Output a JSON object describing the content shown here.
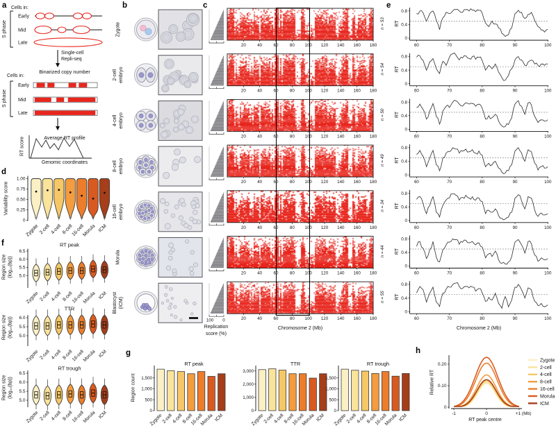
{
  "stages": [
    "Zygote",
    "2-cell",
    "4-cell",
    "8-cell",
    "16-cell",
    "Morula",
    "ICM"
  ],
  "stage_colors": [
    "#FBF0C4",
    "#FAE39B",
    "#F6C766",
    "#F49C3E",
    "#EC7D2B",
    "#D95A20",
    "#A63E1A"
  ],
  "accent_red": "#E8261D",
  "panels": {
    "a": {
      "letter": "a",
      "cells_in": "Cells in:",
      "s_phase": "S phase",
      "phases": [
        "Early",
        "Mid",
        "Late"
      ],
      "arrow_caption": [
        "Single-cell",
        "Repli-seq"
      ],
      "binarized_title": "Binarized copy number",
      "avg_title": "Average RT profile",
      "ylabel": "RT score",
      "xlabel": "Genomic coordinates",
      "early_segments": [
        [
          0.05,
          0.18
        ],
        [
          0.22,
          0.33
        ],
        [
          0.55,
          0.67
        ],
        [
          0.71,
          0.84
        ]
      ],
      "mid_segments": [
        [
          0.02,
          0.28
        ],
        [
          0.36,
          0.48
        ],
        [
          0.54,
          0.97
        ]
      ],
      "late_segments": [
        [
          0.02,
          0.97
        ]
      ]
    },
    "b": {
      "letter": "b",
      "stage_labels": [
        "Zygote",
        "2-cell|embryo",
        "4-cell|embryo",
        "8-cell|embryo",
        "16-cell|embryo",
        "Morula",
        "Blastocyst|(ICM)"
      ]
    },
    "c": {
      "letter": "c",
      "xlabel": "Chromosome 2 (Mb)",
      "hist_label": [
        "Replication",
        "score (%)"
      ],
      "hist_ticks": [
        "100",
        "0"
      ]
    },
    "d": {
      "letter": "d",
      "ylabel": "Variability score"
    },
    "e": {
      "letter": "e",
      "ylabel": "RT",
      "xlabel": "Chromosome 2 (Mb)"
    },
    "f": {
      "letter": "f",
      "ylabel": [
        "Region size",
        "(log₁₀(bp))"
      ]
    },
    "g": {
      "letter": "g",
      "ylabel": "Region count"
    },
    "h": {
      "letter": "h",
      "ylabel": "Relative RT",
      "xlabel": "RT peak centre"
    }
  },
  "chart_data": [
    {
      "panel": "c",
      "type": "heatmap",
      "x_ticks": [
        20,
        40,
        60,
        80,
        100,
        120,
        140,
        160,
        180
      ],
      "xlabel": "Chromosome 2 (Mb)",
      "n_per_row": [
        53,
        54,
        50,
        49,
        34,
        44,
        55
      ],
      "highlight_mb": [
        60,
        100
      ],
      "color": "#E8261D",
      "hist_axis": {
        "label": "Replication score (%)",
        "ticks": [
          100,
          0
        ]
      }
    },
    {
      "panel": "d",
      "type": "violin",
      "title": "",
      "ylabel": "Variability score",
      "categories": [
        "Zygote",
        "2-cell",
        "4-cell",
        "8-cell",
        "16-cell",
        "Morula",
        "ICM"
      ],
      "yticks": [
        "0",
        "0.25",
        "0.50",
        "0.75",
        "1.00"
      ],
      "ylim": [
        0,
        1
      ],
      "medians": [
        0.69,
        0.72,
        0.73,
        0.67,
        0.59,
        0.52,
        0.66
      ]
    },
    {
      "panel": "e",
      "type": "line",
      "ylabel": "RT",
      "xlabel": "Chromosome 2 (Mb)",
      "yticks": [
        "0",
        "0.4",
        "0.8"
      ],
      "xticks": [
        60,
        70,
        80,
        90,
        100
      ],
      "xlim": [
        58,
        100
      ],
      "ylim": [
        0,
        0.95
      ],
      "dashed_y": 0.5,
      "rows": [
        {
          "n_label": "n = 53",
          "x_start": 60,
          "x_step": 1,
          "rt": [
            0.72,
            0.8,
            0.74,
            0.5,
            0.72,
            0.8,
            0.52,
            0.25,
            0.6,
            0.76,
            0.72,
            0.8,
            0.84,
            0.8,
            0.76,
            0.84,
            0.8,
            0.82,
            0.78,
            0.82,
            0.74,
            0.45,
            0.34,
            0.5,
            0.42,
            0.3,
            0.14,
            0.05,
            0.1,
            0.3,
            0.72,
            0.82,
            0.76,
            0.58,
            0.7,
            0.76,
            0.52,
            0.34,
            0.24,
            0.18,
            0.26
          ]
        },
        {
          "n_label": "n = 54",
          "x_start": 60,
          "x_step": 1,
          "rt": [
            0.78,
            0.82,
            0.68,
            0.4,
            0.64,
            0.74,
            0.44,
            0.3,
            0.66,
            0.54,
            0.78,
            0.88,
            0.84,
            0.7,
            0.76,
            0.82,
            0.74,
            0.8,
            0.72,
            0.78,
            0.68,
            0.4,
            0.54,
            0.44,
            0.58,
            0.34,
            0.18,
            0.1,
            0.24,
            0.44,
            0.7,
            0.8,
            0.7,
            0.54,
            0.64,
            0.7,
            0.58,
            0.54,
            0.58,
            0.54,
            0.58
          ]
        },
        {
          "n_label": "n = 50",
          "x_start": 60,
          "x_step": 1,
          "rt": [
            0.64,
            0.74,
            0.58,
            0.3,
            0.54,
            0.76,
            0.38,
            0.15,
            0.54,
            0.68,
            0.64,
            0.8,
            0.84,
            0.74,
            0.68,
            0.78,
            0.74,
            0.76,
            0.68,
            0.74,
            0.62,
            0.3,
            0.4,
            0.34,
            0.44,
            0.24,
            0.1,
            0.08,
            0.14,
            0.34,
            0.74,
            0.84,
            0.68,
            0.44,
            0.78,
            0.72,
            0.38,
            0.2,
            0.28,
            0.24,
            0.28
          ]
        },
        {
          "n_label": "n = 49",
          "x_start": 60,
          "x_step": 1,
          "rt": [
            0.6,
            0.72,
            0.54,
            0.24,
            0.5,
            0.72,
            0.3,
            0.12,
            0.5,
            0.64,
            0.68,
            0.8,
            0.76,
            0.64,
            0.7,
            0.76,
            0.68,
            0.74,
            0.64,
            0.7,
            0.58,
            0.24,
            0.34,
            0.3,
            0.4,
            0.2,
            0.08,
            0.05,
            0.12,
            0.3,
            0.7,
            0.8,
            0.64,
            0.4,
            0.74,
            0.68,
            0.34,
            0.14,
            0.24,
            0.2,
            0.24
          ]
        },
        {
          "n_label": "n = 34",
          "x_start": 60,
          "x_step": 1,
          "rt": [
            0.62,
            0.7,
            0.48,
            0.2,
            0.44,
            0.7,
            0.24,
            0.1,
            0.44,
            0.6,
            0.66,
            0.78,
            0.74,
            0.6,
            0.68,
            0.74,
            0.66,
            0.7,
            0.6,
            0.66,
            0.56,
            0.2,
            0.3,
            0.24,
            0.34,
            0.14,
            0.06,
            0.04,
            0.1,
            0.24,
            0.66,
            0.76,
            0.58,
            0.34,
            0.7,
            0.66,
            0.3,
            0.12,
            0.22,
            0.16,
            0.2
          ]
        },
        {
          "n_label": "n = 44",
          "x_start": 60,
          "x_step": 1,
          "rt": [
            0.58,
            0.72,
            0.52,
            0.22,
            0.48,
            0.72,
            0.26,
            0.12,
            0.48,
            0.62,
            0.7,
            0.8,
            0.78,
            0.64,
            0.7,
            0.76,
            0.68,
            0.72,
            0.62,
            0.68,
            0.56,
            0.24,
            0.36,
            0.28,
            0.44,
            0.18,
            0.08,
            0.06,
            0.12,
            0.28,
            0.7,
            0.78,
            0.62,
            0.38,
            0.72,
            0.66,
            0.32,
            0.14,
            0.24,
            0.18,
            0.22
          ]
        },
        {
          "n_label": "n = 55",
          "x_start": 60,
          "x_step": 1,
          "rt": [
            0.55,
            0.74,
            0.64,
            0.28,
            0.54,
            0.72,
            0.28,
            0.15,
            0.54,
            0.66,
            0.72,
            0.8,
            0.84,
            0.74,
            0.68,
            0.74,
            0.7,
            0.72,
            0.6,
            0.68,
            0.55,
            0.3,
            0.42,
            0.34,
            0.54,
            0.24,
            0.1,
            0.44,
            0.14,
            0.34,
            0.72,
            0.8,
            0.64,
            0.4,
            0.7,
            0.64,
            0.3,
            0.18,
            0.24,
            0.14,
            0.2
          ]
        }
      ]
    },
    {
      "panel": "f",
      "type": "violin",
      "ylabel": "Region size (log₁₀(bp))",
      "categories": [
        "Zygote",
        "2-cell",
        "4-cell",
        "8-cell",
        "16-cell",
        "Morula",
        "ICM"
      ],
      "charts": [
        {
          "title": "RT peak",
          "yticks": [
            "5.0",
            "5.5",
            "6.0",
            "6.5"
          ],
          "medians": [
            5.15,
            5.2,
            5.25,
            5.3,
            5.3,
            5.4,
            5.35
          ]
        },
        {
          "title": "TTR",
          "yticks": [
            "5.0",
            "5.5",
            "6.0"
          ],
          "medians": [
            5.55,
            5.55,
            5.6,
            5.6,
            5.6,
            5.65,
            5.6
          ]
        },
        {
          "title": "RT trough",
          "yticks": [
            "5.0",
            "5.5",
            "6.0",
            "6.5"
          ],
          "medians": [
            5.3,
            5.25,
            5.3,
            5.35,
            5.3,
            5.4,
            5.3
          ]
        }
      ]
    },
    {
      "panel": "g",
      "type": "bar",
      "ylabel": "Region count",
      "categories": [
        "Zygote",
        "2-cell",
        "4-cell",
        "8-cell",
        "16-cell",
        "Morula",
        "ICM"
      ],
      "charts": [
        {
          "title": "RT peak",
          "ytick_labels": [
            "0",
            "500",
            "1,000",
            "1,500"
          ],
          "ytick_values": [
            0,
            500,
            1000,
            1500
          ],
          "ymax": 2000,
          "values": [
            1900,
            1830,
            1790,
            1690,
            1790,
            1570,
            1690
          ]
        },
        {
          "title": "TTR",
          "ytick_labels": [
            "0",
            "1,000",
            "2,000",
            "3,000"
          ],
          "ytick_values": [
            0,
            1000,
            2000,
            3000
          ],
          "ymax": 3300,
          "values": [
            3100,
            3160,
            3060,
            2790,
            2790,
            2460,
            2790
          ]
        },
        {
          "title": "RT trough",
          "ytick_labels": [
            "0",
            "500",
            "1,000",
            "1,500"
          ],
          "ytick_values": [
            0,
            500,
            1000,
            1500
          ],
          "ymax": 2000,
          "values": [
            1900,
            1850,
            1810,
            1700,
            1790,
            1580,
            1700
          ]
        }
      ]
    },
    {
      "panel": "h",
      "type": "line",
      "ylabel": "Relative RT",
      "xlabel": "RT peak centre",
      "legend": [
        "Zygote",
        "2-cell",
        "4-cell",
        "8-cell",
        "16-cell",
        "Morula",
        "ICM"
      ],
      "yticks": [
        "0",
        "0.10",
        "0.20"
      ],
      "xtick_labels": [
        "-1",
        "0",
        "+1 (Mb)"
      ],
      "xtick_values": [
        -1,
        0,
        1
      ],
      "peaks": [
        0.11,
        0.115,
        0.122,
        0.15,
        0.205,
        0.232,
        0.128
      ],
      "sigmas": [
        0.38,
        0.38,
        0.39,
        0.42,
        0.47,
        0.49,
        0.41
      ],
      "xlim": [
        -1,
        1
      ],
      "ylim": [
        0,
        0.25
      ]
    }
  ]
}
